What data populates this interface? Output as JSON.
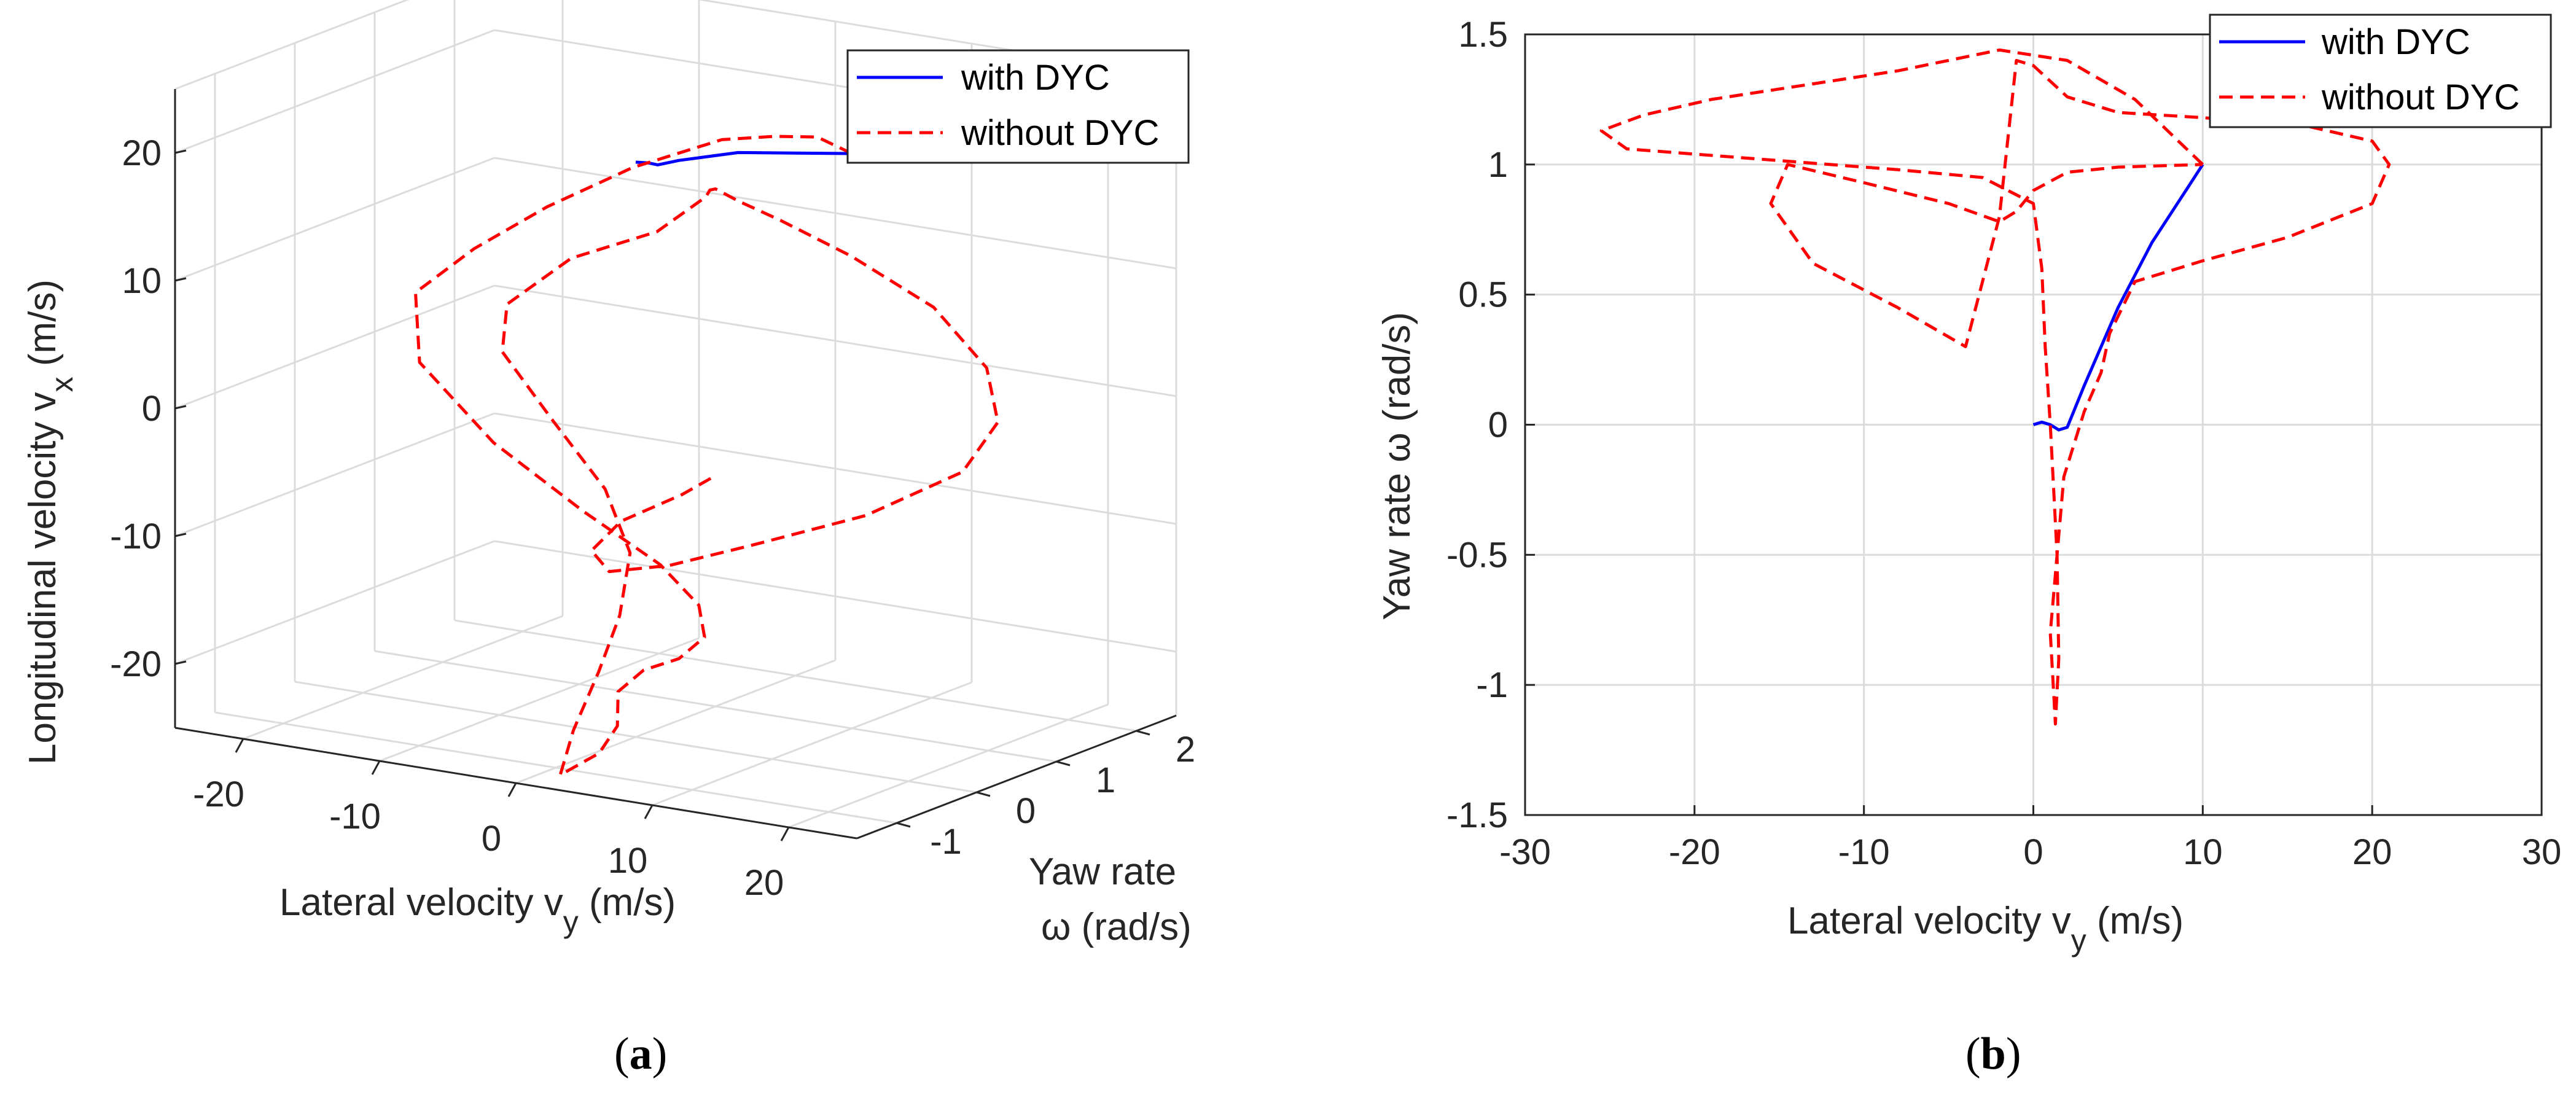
{
  "chart_data": [
    {
      "type": "line3d",
      "panel_label": "a",
      "xlabel": "Lateral velocity v",
      "xlabel_sub": "y",
      "xlabel_unit": " (m/s)",
      "ylabel_line1": "Yaw rate",
      "ylabel_line2": "ω (rad/s)",
      "zlabel": "Longitudinal velocity v",
      "zlabel_sub": "x",
      "zlabel_unit": " (m/s)",
      "xlim": [
        -25,
        25
      ],
      "ylim": [
        -1.5,
        2.5
      ],
      "zlim": [
        -25,
        25
      ],
      "x_ticks": [
        -20,
        -10,
        0,
        10,
        20
      ],
      "y_ticks": [
        -1,
        0,
        1,
        2
      ],
      "z_ticks": [
        -20,
        -10,
        0,
        10,
        20
      ],
      "legend": [
        "with DYC",
        "without DYC"
      ],
      "series": [
        {
          "name": "with DYC",
          "color": "#0000ff",
          "dash": "solid",
          "points": [
            [
              10,
              1,
              20
            ],
            [
              7,
              0.8,
              20
            ],
            [
              4,
              0.6,
              20
            ],
            [
              2,
              0.2,
              20
            ],
            [
              1.5,
              0.02,
              20
            ],
            [
              0.8,
              0.03,
              20
            ],
            [
              0,
              0,
              20
            ]
          ]
        },
        {
          "name": "without DYC",
          "color": "#ff0000",
          "dash": "dashed",
          "points": [
            [
              10,
              1,
              20
            ],
            [
              6,
              1.25,
              20
            ],
            [
              2,
              1.4,
              19
            ],
            [
              -2,
              1.42,
              18
            ],
            [
              -8,
              1.33,
              15
            ],
            [
              -14,
              1.28,
              11
            ],
            [
              -19,
              1.22,
              7
            ],
            [
              -23,
              1.17,
              3
            ],
            [
              -22,
              1.05,
              -2
            ],
            [
              -16,
              0.95,
              -7
            ],
            [
              -9,
              0.88,
              -11
            ],
            [
              -3,
              0.82,
              -14
            ],
            [
              1,
              0.62,
              -16
            ],
            [
              3,
              0.35,
              -17.5
            ],
            [
              2,
              0.2,
              -19
            ],
            [
              0,
              0.1,
              -20
            ],
            [
              -1,
              -0.05,
              -21.5
            ],
            [
              1,
              -0.4,
              -23
            ],
            [
              2,
              -0.8,
              -24
            ],
            [
              1.2,
              -1.15,
              -25
            ],
            [
              1,
              -0.95,
              -22
            ],
            [
              0.5,
              -0.55,
              -18.5
            ],
            [
              0,
              -0.2,
              -15
            ],
            [
              -1,
              0.1,
              -11
            ],
            [
              -4,
              0.3,
              -7
            ],
            [
              -9,
              0.5,
              -3
            ],
            [
              -14,
              0.72,
              1
            ],
            [
              -15,
              0.95,
              4
            ],
            [
              -11,
              1.07,
              8
            ],
            [
              -5,
              1.12,
              11
            ],
            [
              -2,
              1.22,
              14
            ],
            [
              -1,
              1.1,
              15
            ],
            [
              0,
              1.0,
              15.5
            ],
            [
              2,
              0.95,
              15
            ],
            [
              5,
              0.96,
              14
            ],
            [
              10,
              0.99,
              12
            ],
            [
              16,
              1.0,
              9
            ],
            [
              20,
              0.98,
              5
            ],
            [
              21,
              0.95,
              1
            ],
            [
              19,
              0.85,
              -3
            ],
            [
              13,
              0.66,
              -7
            ],
            [
              6,
              0.45,
              -10
            ],
            [
              1,
              0.25,
              -12
            ],
            [
              -3,
              0.18,
              -13
            ],
            [
              -5,
              0.3,
              -12
            ],
            [
              -4,
              0.5,
              -10
            ],
            [
              -1,
              0.75,
              -8
            ],
            [
              0,
              0.95,
              -7
            ]
          ]
        }
      ]
    },
    {
      "type": "line",
      "panel_label": "b",
      "xlabel": "Lateral velocity  v",
      "xlabel_sub": "y",
      "xlabel_unit": " (m/s)",
      "ylabel": "Yaw rate ω (rad/s)",
      "xlim": [
        -30,
        30
      ],
      "ylim": [
        -1.5,
        1.5
      ],
      "x_ticks": [
        -30,
        -20,
        -10,
        0,
        10,
        20,
        30
      ],
      "y_ticks": [
        -1.5,
        -1,
        -0.5,
        0,
        0.5,
        1,
        1.5
      ],
      "grid": true,
      "legend": [
        "with DYC",
        "without  DYC"
      ],
      "series": [
        {
          "name": "with DYC",
          "color": "#0000ff",
          "dash": "solid",
          "x": [
            0,
            0.5,
            1,
            1.5,
            2,
            3,
            5,
            7,
            9,
            10
          ],
          "y": [
            0,
            0.01,
            0,
            -0.02,
            -0.01,
            0.15,
            0.45,
            0.7,
            0.9,
            1.0
          ]
        },
        {
          "name": "without DYC",
          "color": "#ff0000",
          "dash": "dashed",
          "x": [
            10,
            6,
            2,
            -2,
            -8,
            -14,
            -19,
            -23,
            -25.5,
            -24,
            -20,
            -14,
            -8,
            -3,
            0,
            0.5,
            0.7,
            1,
            1.4,
            1.5,
            1.3,
            1,
            1.8,
            3,
            4,
            4.5,
            6,
            10,
            15,
            20,
            21,
            20,
            16,
            10,
            5,
            2,
            0,
            -1,
            -1.5,
            -2,
            -4,
            -8,
            -13,
            -15.5,
            -14.5,
            -10,
            -5,
            -2,
            -1,
            0,
            2,
            5,
            10
          ],
          "y": [
            1.0,
            1.25,
            1.4,
            1.44,
            1.36,
            1.3,
            1.25,
            1.19,
            1.13,
            1.06,
            1.04,
            1.01,
            0.98,
            0.95,
            0.85,
            0.6,
            0.3,
            0.0,
            -0.5,
            -0.9,
            -1.15,
            -0.8,
            -0.2,
            0.05,
            0.2,
            0.35,
            0.55,
            0.63,
            0.72,
            0.85,
            1.0,
            1.09,
            1.15,
            1.18,
            1.2,
            1.26,
            1.38,
            1.4,
            1.1,
            0.8,
            0.3,
            0.45,
            0.62,
            0.85,
            1.0,
            0.93,
            0.85,
            0.78,
            0.82,
            0.9,
            0.97,
            0.99,
            1.0
          ]
        }
      ]
    }
  ]
}
